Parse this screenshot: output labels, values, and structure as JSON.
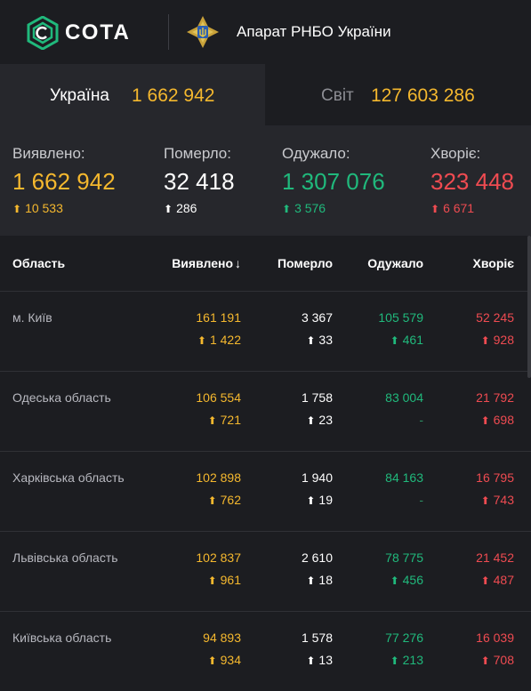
{
  "header": {
    "brand": "СОТА",
    "agency": "Апарат РНБО України",
    "logo_icon": "cota-logo-icon",
    "emblem_icon": "rnbo-emblem-icon"
  },
  "tabs": [
    {
      "label": "Україна",
      "value": "1 662 942",
      "active": true
    },
    {
      "label": "Світ",
      "value": "127 603 286",
      "active": false
    }
  ],
  "summary": [
    {
      "label": "Виявлено:",
      "value": "1 662 942",
      "delta": "10 533",
      "color": "#f5b82e"
    },
    {
      "label": "Померло:",
      "value": "32 418",
      "delta": "286",
      "color": "#ffffff"
    },
    {
      "label": "Одужало:",
      "value": "1 307 076",
      "delta": "3 576",
      "color": "#20b97c"
    },
    {
      "label": "Хворіє:",
      "value": "323 448",
      "delta": "6 671",
      "color": "#ef4b51"
    }
  ],
  "table": {
    "columns": [
      "Область",
      "Виявлено",
      "Померло",
      "Одужало",
      "Хворіє"
    ],
    "sort_arrow": "↓",
    "rows": [
      {
        "region": "м. Київ",
        "detected": "161 191",
        "detected_delta": "1 422",
        "died": "3 367",
        "died_delta": "33",
        "recovered": "105 579",
        "recovered_delta": "461",
        "sick": "52 245",
        "sick_delta": "928"
      },
      {
        "region": "Одеська область",
        "detected": "106 554",
        "detected_delta": "721",
        "died": "1 758",
        "died_delta": "23",
        "recovered": "83 004",
        "recovered_delta": "-",
        "sick": "21 792",
        "sick_delta": "698"
      },
      {
        "region": "Харківська область",
        "detected": "102 898",
        "detected_delta": "762",
        "died": "1 940",
        "died_delta": "19",
        "recovered": "84 163",
        "recovered_delta": "-",
        "sick": "16 795",
        "sick_delta": "743"
      },
      {
        "region": "Львівська область",
        "detected": "102 837",
        "detected_delta": "961",
        "died": "2 610",
        "died_delta": "18",
        "recovered": "78 775",
        "recovered_delta": "456",
        "sick": "21 452",
        "sick_delta": "487"
      },
      {
        "region": "Київська область",
        "detected": "94 893",
        "detected_delta": "934",
        "died": "1 578",
        "died_delta": "13",
        "recovered": "77 276",
        "recovered_delta": "213",
        "sick": "16 039",
        "sick_delta": "708"
      }
    ]
  }
}
